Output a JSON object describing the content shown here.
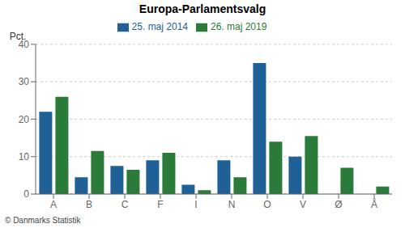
{
  "chart_data": {
    "type": "bar",
    "title": "Europa-Parlamentsvalg",
    "categories": [
      "A",
      "B",
      "C",
      "F",
      "I",
      "N",
      "O",
      "V",
      "Ø",
      "Å"
    ],
    "series": [
      {
        "name": "25. maj 2014",
        "color": "#1f6096",
        "values": [
          22,
          4.5,
          7.5,
          9,
          2.5,
          9,
          35,
          10,
          0,
          0
        ]
      },
      {
        "name": "26. maj 2019",
        "color": "#2a7a3a",
        "values": [
          26,
          11.5,
          6.5,
          11,
          1,
          4.5,
          14,
          15.5,
          7,
          2
        ]
      }
    ],
    "ylabel": "Pct.",
    "ylim": [
      0,
      40
    ],
    "yticks": [
      0,
      10,
      20,
      30,
      40
    ],
    "grid": true,
    "legend": "top",
    "footer": "© Danmarks Statistik"
  }
}
